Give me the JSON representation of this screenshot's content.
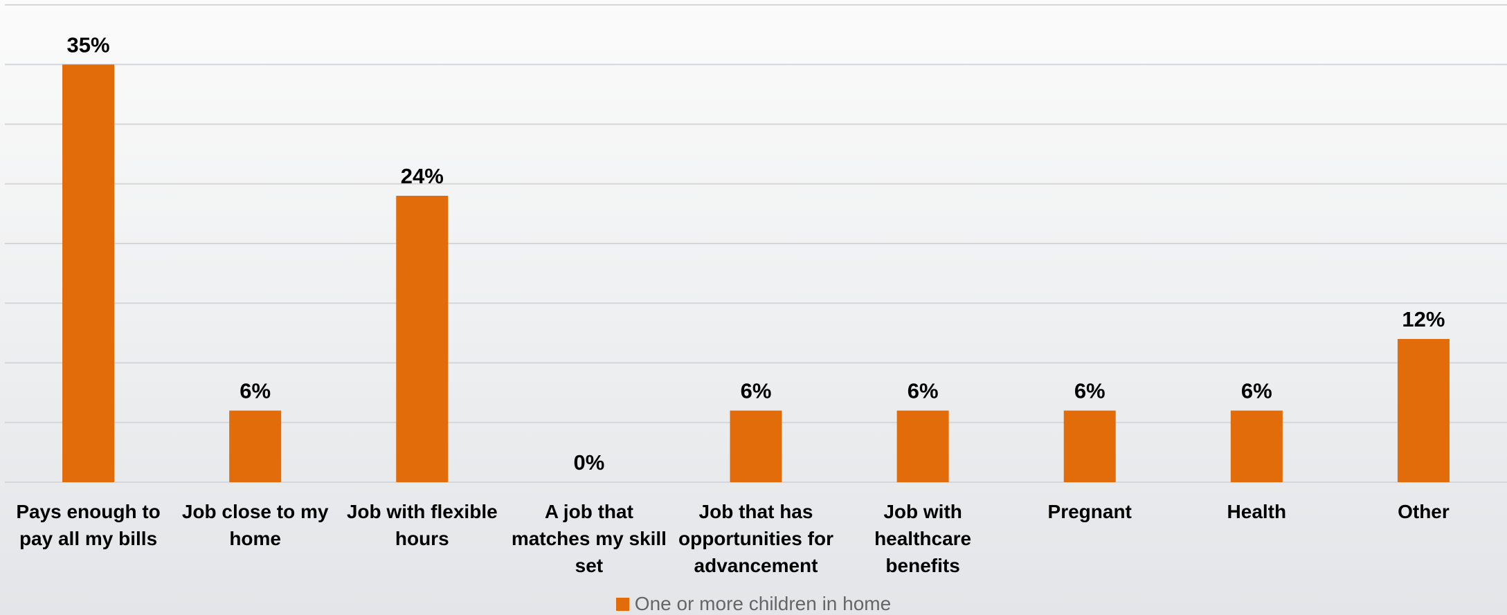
{
  "chart_data": {
    "type": "bar",
    "categories": [
      "Pays enough to pay all my bills",
      "Job close to my home",
      "Job with flexible hours",
      "A job that matches my skill set",
      "Job that has opportunities for advancement",
      "Job with healthcare benefits",
      "Pregnant",
      "Health",
      "Other"
    ],
    "series": [
      {
        "name": "One or more children in home",
        "color": "#e36c0a",
        "values": [
          35,
          6,
          24,
          0,
          6,
          6,
          6,
          6,
          12
        ],
        "value_labels": [
          "35%",
          "6%",
          "24%",
          "0%",
          "6%",
          "6%",
          "6%",
          "6%",
          "12%"
        ]
      }
    ],
    "ylim": [
      0,
      40
    ],
    "yticks": [
      0,
      5,
      10,
      15,
      20,
      25,
      30,
      35,
      40
    ],
    "grid": true,
    "legend": "bottom"
  }
}
